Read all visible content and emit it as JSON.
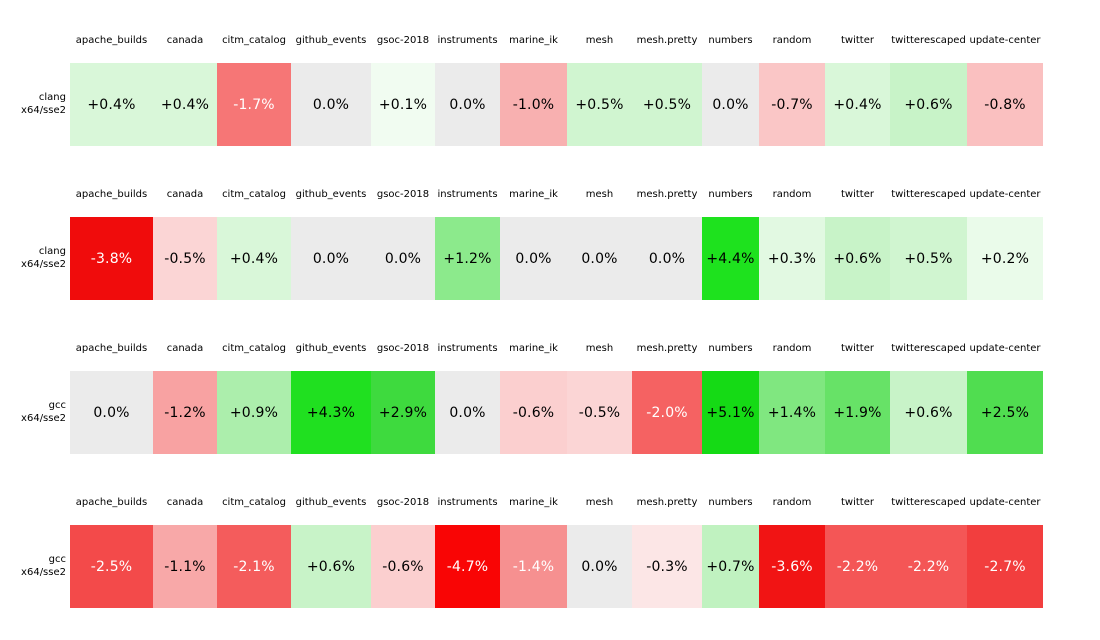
{
  "figure": {
    "background": "#ffffff",
    "zero_color": "#ebebeb",
    "positive_color": "#1ee21e",
    "negative_color": "#f00c0c",
    "columns": [
      "apache_builds",
      "canada",
      "citm_catalog",
      "github_events",
      "gsoc-2018",
      "instruments",
      "marine_ik",
      "mesh",
      "mesh.pretty",
      "numbers",
      "random",
      "twitter",
      "twitterescaped",
      "update-center"
    ]
  },
  "blocks": [
    {
      "compiler": "clang",
      "arch": "x64/sse2",
      "cells": [
        {
          "text": "+0.4%",
          "bg": "#d9f7d9",
          "fg": "#000000"
        },
        {
          "text": "+0.4%",
          "bg": "#d9f7d9",
          "fg": "#000000"
        },
        {
          "text": "-1.7%",
          "bg": "#f67676",
          "fg": "#ffffff"
        },
        {
          "text": "0.0%",
          "bg": "#ebebeb",
          "fg": "#000000"
        },
        {
          "text": "+0.1%",
          "bg": "#f1fcf1",
          "fg": "#000000"
        },
        {
          "text": "0.0%",
          "bg": "#ebebeb",
          "fg": "#000000"
        },
        {
          "text": "-1.0%",
          "bg": "#f8b0b0",
          "fg": "#000000"
        },
        {
          "text": "+0.5%",
          "bg": "#d0f5d0",
          "fg": "#000000"
        },
        {
          "text": "+0.5%",
          "bg": "#d0f5d0",
          "fg": "#000000"
        },
        {
          "text": "0.0%",
          "bg": "#ebebeb",
          "fg": "#000000"
        },
        {
          "text": "-0.7%",
          "bg": "#fac6c6",
          "fg": "#000000"
        },
        {
          "text": "+0.4%",
          "bg": "#d9f7d9",
          "fg": "#000000"
        },
        {
          "text": "+0.6%",
          "bg": "#c8f3c8",
          "fg": "#000000"
        },
        {
          "text": "-0.8%",
          "bg": "#fac0c0",
          "fg": "#000000"
        }
      ]
    },
    {
      "compiler": "clang",
      "arch": "x64/sse2",
      "cells": [
        {
          "text": "-3.8%",
          "bg": "#f00c0c",
          "fg": "#ffffff"
        },
        {
          "text": "-0.5%",
          "bg": "#fbd5d5",
          "fg": "#000000"
        },
        {
          "text": "+0.4%",
          "bg": "#d9f7d9",
          "fg": "#000000"
        },
        {
          "text": "0.0%",
          "bg": "#ebebeb",
          "fg": "#000000"
        },
        {
          "text": "0.0%",
          "bg": "#ebebeb",
          "fg": "#000000"
        },
        {
          "text": "+1.2%",
          "bg": "#8cea8c",
          "fg": "#000000"
        },
        {
          "text": "0.0%",
          "bg": "#ebebeb",
          "fg": "#000000"
        },
        {
          "text": "0.0%",
          "bg": "#ebebeb",
          "fg": "#000000"
        },
        {
          "text": "0.0%",
          "bg": "#ebebeb",
          "fg": "#000000"
        },
        {
          "text": "+4.4%",
          "bg": "#1ee21e",
          "fg": "#000000"
        },
        {
          "text": "+0.3%",
          "bg": "#e2f9e2",
          "fg": "#000000"
        },
        {
          "text": "+0.6%",
          "bg": "#c8f3c8",
          "fg": "#000000"
        },
        {
          "text": "+0.5%",
          "bg": "#d0f5d0",
          "fg": "#000000"
        },
        {
          "text": "+0.2%",
          "bg": "#eafbea",
          "fg": "#000000"
        }
      ]
    },
    {
      "compiler": "gcc",
      "arch": "x64/sse2",
      "cells": [
        {
          "text": "0.0%",
          "bg": "#ebebeb",
          "fg": "#000000"
        },
        {
          "text": "-1.2%",
          "bg": "#f8a2a2",
          "fg": "#000000"
        },
        {
          "text": "+0.9%",
          "bg": "#aceeac",
          "fg": "#000000"
        },
        {
          "text": "+4.3%",
          "bg": "#20e020",
          "fg": "#000000"
        },
        {
          "text": "+2.9%",
          "bg": "#3eda3e",
          "fg": "#000000"
        },
        {
          "text": "0.0%",
          "bg": "#ebebeb",
          "fg": "#000000"
        },
        {
          "text": "-0.6%",
          "bg": "#fbcfcf",
          "fg": "#000000"
        },
        {
          "text": "-0.5%",
          "bg": "#fbd5d5",
          "fg": "#000000"
        },
        {
          "text": "-2.0%",
          "bg": "#f56262",
          "fg": "#ffffff"
        },
        {
          "text": "+5.1%",
          "bg": "#15da15",
          "fg": "#000000"
        },
        {
          "text": "+1.4%",
          "bg": "#80e780",
          "fg": "#000000"
        },
        {
          "text": "+1.9%",
          "bg": "#67e267",
          "fg": "#000000"
        },
        {
          "text": "+0.6%",
          "bg": "#c8f3c8",
          "fg": "#000000"
        },
        {
          "text": "+2.5%",
          "bg": "#50dd50",
          "fg": "#000000"
        }
      ]
    },
    {
      "compiler": "gcc",
      "arch": "x64/sse2",
      "cells": [
        {
          "text": "-2.5%",
          "bg": "#f34a4a",
          "fg": "#ffffff"
        },
        {
          "text": "-1.1%",
          "bg": "#f8a8a8",
          "fg": "#000000"
        },
        {
          "text": "-2.1%",
          "bg": "#f45c5c",
          "fg": "#ffffff"
        },
        {
          "text": "+0.6%",
          "bg": "#c8f3c8",
          "fg": "#000000"
        },
        {
          "text": "-0.6%",
          "bg": "#fbcfcf",
          "fg": "#000000"
        },
        {
          "text": "-4.7%",
          "bg": "#f90505",
          "fg": "#ffffff"
        },
        {
          "text": "-1.4%",
          "bg": "#f69090",
          "fg": "#ffffff"
        },
        {
          "text": "0.0%",
          "bg": "#ebebeb",
          "fg": "#000000"
        },
        {
          "text": "-0.3%",
          "bg": "#fce6e6",
          "fg": "#000000"
        },
        {
          "text": "+0.7%",
          "bg": "#c0f2c0",
          "fg": "#000000"
        },
        {
          "text": "-3.6%",
          "bg": "#f11414",
          "fg": "#ffffff"
        },
        {
          "text": "-2.2%",
          "bg": "#f45656",
          "fg": "#ffffff"
        },
        {
          "text": "-2.2%",
          "bg": "#f45656",
          "fg": "#ffffff"
        },
        {
          "text": "-2.7%",
          "bg": "#f23e3e",
          "fg": "#ffffff"
        }
      ]
    }
  ],
  "chart_data": {
    "type": "heatmap",
    "columns": [
      "apache_builds",
      "canada",
      "citm_catalog",
      "github_events",
      "gsoc-2018",
      "instruments",
      "marine_ik",
      "mesh",
      "mesh.pretty",
      "numbers",
      "random",
      "twitter",
      "twitterescaped",
      "update-center"
    ],
    "rows": [
      "clang x64/sse2",
      "clang x64/sse2",
      "gcc x64/sse2",
      "gcc x64/sse2"
    ],
    "values_pct": [
      [
        0.4,
        0.4,
        -1.7,
        0.0,
        0.1,
        0.0,
        -1.0,
        0.5,
        0.5,
        0.0,
        -0.7,
        0.4,
        0.6,
        -0.8
      ],
      [
        -3.8,
        -0.5,
        0.4,
        0.0,
        0.0,
        1.2,
        0.0,
        0.0,
        0.0,
        4.4,
        0.3,
        0.6,
        0.5,
        0.2
      ],
      [
        0.0,
        -1.2,
        0.9,
        4.3,
        2.9,
        0.0,
        -0.6,
        -0.5,
        -2.0,
        5.1,
        1.4,
        1.9,
        0.6,
        2.5
      ],
      [
        -2.5,
        -1.1,
        -2.1,
        0.6,
        -0.6,
        -4.7,
        -1.4,
        0.0,
        -0.3,
        0.7,
        -3.6,
        -2.2,
        -2.2,
        -2.7
      ]
    ],
    "value_format": "signed percent, one decimal",
    "color_scheme": {
      "positive": "green",
      "negative": "red",
      "zero": "light gray"
    },
    "legend": "none",
    "grid": "none",
    "title": ""
  }
}
